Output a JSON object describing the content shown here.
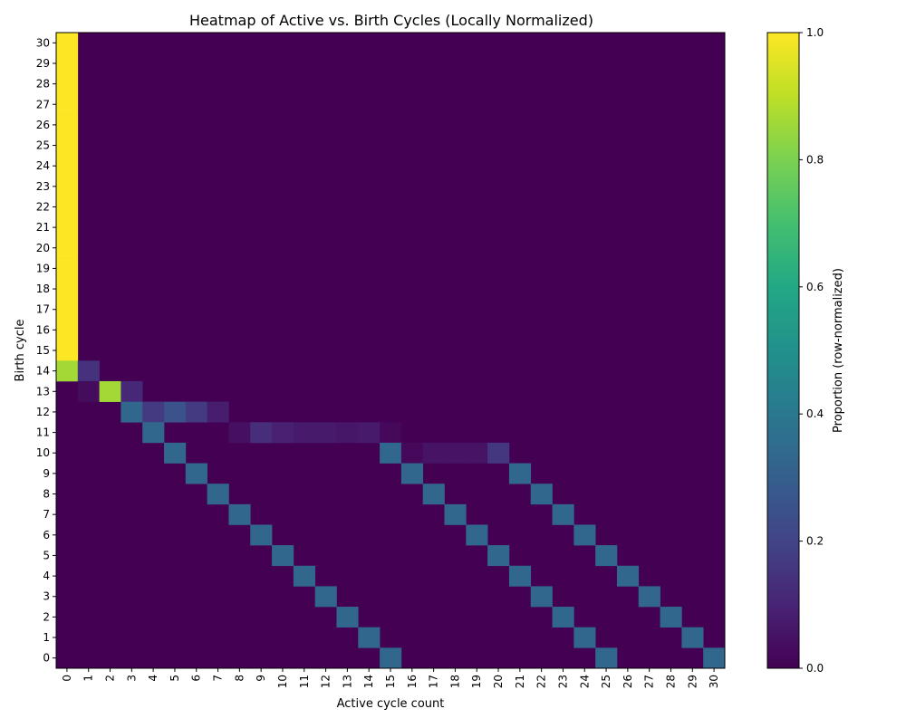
{
  "chart_data": {
    "type": "heatmap",
    "title": "Heatmap of Active vs. Birth Cycles (Locally Normalized)",
    "xlabel": "Active cycle count",
    "ylabel": "Birth cycle",
    "x_categories": [
      "0",
      "1",
      "2",
      "3",
      "4",
      "5",
      "6",
      "7",
      "8",
      "9",
      "10",
      "11",
      "12",
      "13",
      "14",
      "15",
      "16",
      "17",
      "18",
      "19",
      "20",
      "21",
      "22",
      "23",
      "24",
      "25",
      "26",
      "27",
      "28",
      "29",
      "30"
    ],
    "y_categories": [
      "30",
      "29",
      "28",
      "27",
      "26",
      "25",
      "24",
      "23",
      "22",
      "21",
      "20",
      "19",
      "18",
      "17",
      "16",
      "15",
      "14",
      "13",
      "12",
      "11",
      "10",
      "9",
      "8",
      "7",
      "6",
      "5",
      "4",
      "3",
      "2",
      "1",
      "0"
    ],
    "colormap": "viridis",
    "colorbar": {
      "label": "Proportion (row-normalized)",
      "range": [
        0,
        1
      ],
      "ticks": [
        "0.0",
        "0.2",
        "0.4",
        "0.6",
        "0.8",
        "1.0"
      ]
    },
    "cells": [
      {
        "row": "30",
        "col": "0",
        "value": 1.0
      },
      {
        "row": "29",
        "col": "0",
        "value": 1.0
      },
      {
        "row": "28",
        "col": "0",
        "value": 1.0
      },
      {
        "row": "27",
        "col": "0",
        "value": 1.0
      },
      {
        "row": "26",
        "col": "0",
        "value": 1.0
      },
      {
        "row": "25",
        "col": "0",
        "value": 1.0
      },
      {
        "row": "24",
        "col": "0",
        "value": 1.0
      },
      {
        "row": "23",
        "col": "0",
        "value": 1.0
      },
      {
        "row": "22",
        "col": "0",
        "value": 1.0
      },
      {
        "row": "21",
        "col": "0",
        "value": 1.0
      },
      {
        "row": "20",
        "col": "0",
        "value": 1.0
      },
      {
        "row": "19",
        "col": "0",
        "value": 1.0
      },
      {
        "row": "18",
        "col": "0",
        "value": 1.0
      },
      {
        "row": "17",
        "col": "0",
        "value": 1.0
      },
      {
        "row": "16",
        "col": "0",
        "value": 1.0
      },
      {
        "row": "15",
        "col": "0",
        "value": 1.0
      },
      {
        "row": "14",
        "col": "0",
        "value": 0.86
      },
      {
        "row": "14",
        "col": "1",
        "value": 0.14
      },
      {
        "row": "13",
        "col": "1",
        "value": 0.03
      },
      {
        "row": "13",
        "col": "2",
        "value": 0.86
      },
      {
        "row": "13",
        "col": "3",
        "value": 0.11
      },
      {
        "row": "12",
        "col": "3",
        "value": 0.33
      },
      {
        "row": "12",
        "col": "4",
        "value": 0.17
      },
      {
        "row": "12",
        "col": "5",
        "value": 0.25
      },
      {
        "row": "12",
        "col": "6",
        "value": 0.17
      },
      {
        "row": "12",
        "col": "7",
        "value": 0.08
      },
      {
        "row": "11",
        "col": "4",
        "value": 0.33
      },
      {
        "row": "11",
        "col": "8",
        "value": 0.04
      },
      {
        "row": "11",
        "col": "9",
        "value": 0.13
      },
      {
        "row": "11",
        "col": "10",
        "value": 0.09
      },
      {
        "row": "11",
        "col": "11",
        "value": 0.07
      },
      {
        "row": "11",
        "col": "12",
        "value": 0.07
      },
      {
        "row": "11",
        "col": "13",
        "value": 0.06
      },
      {
        "row": "11",
        "col": "14",
        "value": 0.07
      },
      {
        "row": "11",
        "col": "15",
        "value": 0.02
      },
      {
        "row": "10",
        "col": "5",
        "value": 0.33
      },
      {
        "row": "10",
        "col": "15",
        "value": 0.33
      },
      {
        "row": "10",
        "col": "16",
        "value": 0.02
      },
      {
        "row": "10",
        "col": "17",
        "value": 0.05
      },
      {
        "row": "10",
        "col": "18",
        "value": 0.05
      },
      {
        "row": "10",
        "col": "19",
        "value": 0.05
      },
      {
        "row": "10",
        "col": "20",
        "value": 0.16
      },
      {
        "row": "9",
        "col": "6",
        "value": 0.33
      },
      {
        "row": "9",
        "col": "16",
        "value": 0.33
      },
      {
        "row": "9",
        "col": "21",
        "value": 0.33
      },
      {
        "row": "8",
        "col": "7",
        "value": 0.33
      },
      {
        "row": "8",
        "col": "17",
        "value": 0.33
      },
      {
        "row": "8",
        "col": "22",
        "value": 0.33
      },
      {
        "row": "7",
        "col": "8",
        "value": 0.33
      },
      {
        "row": "7",
        "col": "18",
        "value": 0.33
      },
      {
        "row": "7",
        "col": "23",
        "value": 0.33
      },
      {
        "row": "6",
        "col": "9",
        "value": 0.33
      },
      {
        "row": "6",
        "col": "19",
        "value": 0.33
      },
      {
        "row": "6",
        "col": "24",
        "value": 0.33
      },
      {
        "row": "5",
        "col": "10",
        "value": 0.33
      },
      {
        "row": "5",
        "col": "20",
        "value": 0.33
      },
      {
        "row": "5",
        "col": "25",
        "value": 0.33
      },
      {
        "row": "4",
        "col": "11",
        "value": 0.33
      },
      {
        "row": "4",
        "col": "21",
        "value": 0.33
      },
      {
        "row": "4",
        "col": "26",
        "value": 0.33
      },
      {
        "row": "3",
        "col": "12",
        "value": 0.33
      },
      {
        "row": "3",
        "col": "22",
        "value": 0.33
      },
      {
        "row": "3",
        "col": "27",
        "value": 0.33
      },
      {
        "row": "2",
        "col": "13",
        "value": 0.33
      },
      {
        "row": "2",
        "col": "23",
        "value": 0.33
      },
      {
        "row": "2",
        "col": "28",
        "value": 0.33
      },
      {
        "row": "1",
        "col": "14",
        "value": 0.33
      },
      {
        "row": "1",
        "col": "24",
        "value": 0.33
      },
      {
        "row": "1",
        "col": "29",
        "value": 0.33
      },
      {
        "row": "0",
        "col": "15",
        "value": 0.33
      },
      {
        "row": "0",
        "col": "25",
        "value": 0.33
      },
      {
        "row": "0",
        "col": "30",
        "value": 0.33
      }
    ]
  }
}
